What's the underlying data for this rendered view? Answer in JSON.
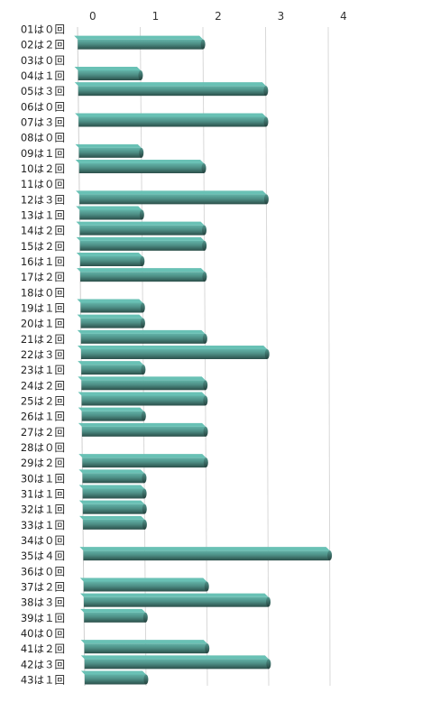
{
  "chart_data": {
    "type": "bar",
    "orientation": "horizontal",
    "style": "3d",
    "title": "",
    "xlabel": "",
    "ylabel": "",
    "xlim": [
      0,
      4
    ],
    "x_ticks": [
      "0",
      "1",
      "2",
      "3",
      "4"
    ],
    "grid": true,
    "legend": "none",
    "bar_color": "#4e8f86",
    "categories": [
      "01は０回",
      "02は２回",
      "03は０回",
      "04は１回",
      "05は３回",
      "06は０回",
      "07は３回",
      "08は０回",
      "09は１回",
      "10は２回",
      "11は０回",
      "12は３回",
      "13は１回",
      "14は２回",
      "15は２回",
      "16は１回",
      "17は２回",
      "18は０回",
      "19は１回",
      "20は１回",
      "21は２回",
      "22は３回",
      "23は１回",
      "24は２回",
      "25は２回",
      "26は１回",
      "27は２回",
      "28は０回",
      "29は２回",
      "30は１回",
      "31は１回",
      "32は１回",
      "33は１回",
      "34は０回",
      "35は４回",
      "36は０回",
      "37は２回",
      "38は３回",
      "39は１回",
      "40は０回",
      "41は２回",
      "42は３回",
      "43は１回"
    ],
    "values": [
      0,
      2,
      0,
      1,
      3,
      0,
      3,
      0,
      1,
      2,
      0,
      3,
      1,
      2,
      2,
      1,
      2,
      0,
      1,
      1,
      2,
      3,
      1,
      2,
      2,
      1,
      2,
      0,
      2,
      1,
      1,
      1,
      1,
      0,
      4,
      0,
      2,
      3,
      1,
      0,
      2,
      3,
      1
    ]
  }
}
